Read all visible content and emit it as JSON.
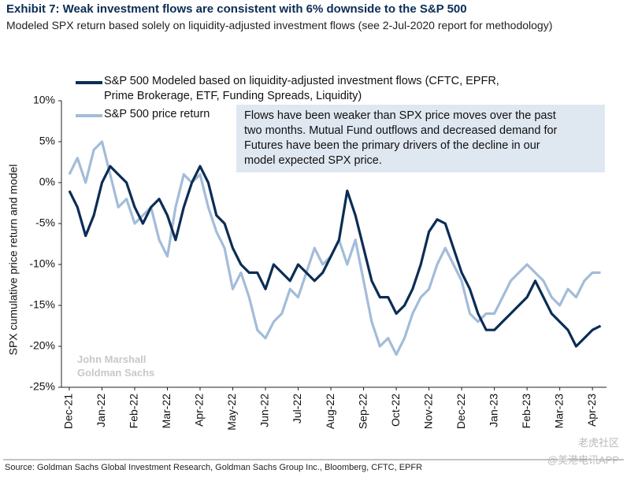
{
  "chart_data": {
    "type": "line",
    "title": "Exhibit 7: Weak investment flows are consistent with 6% downside to the S&P 500",
    "subtitle": "Modeled SPX return based solely on liquidity-adjusted investment flows (see 2-Jul-2020 report for methodology)",
    "y_label": "SPX cumulative price return and model",
    "annotation": [
      "Flows have been weaker than SPX price moves over the past",
      "two months. Mutual Fund outflows and decreased demand for",
      "Futures have been the primary drivers of the decline in our",
      "model expected SPX price."
    ],
    "watermark": [
      "John Marshall",
      "Goldman Sachs"
    ],
    "site_watermark": [
      "老虎社区",
      "@美港电讯APP"
    ],
    "source": "Source: Goldman Sachs Global Investment Research, Goldman Sachs Group Inc., Bloomberg, CFTC, EPFR",
    "x": [
      0,
      0.25,
      0.5,
      0.75,
      1,
      1.25,
      1.5,
      1.75,
      2,
      2.25,
      2.5,
      2.75,
      3,
      3.25,
      3.5,
      3.75,
      4,
      4.25,
      4.5,
      4.75,
      5,
      5.25,
      5.5,
      5.75,
      6,
      6.25,
      6.5,
      6.75,
      7,
      7.25,
      7.5,
      7.75,
      8,
      8.25,
      8.5,
      8.75,
      9,
      9.25,
      9.5,
      9.75,
      10,
      10.25,
      10.5,
      10.75,
      11,
      11.25,
      11.5,
      11.75,
      12,
      12.25,
      12.5,
      12.75,
      13,
      13.25,
      13.5,
      13.75,
      14,
      14.25,
      14.5,
      14.75,
      15,
      15.25,
      15.5,
      15.75,
      16,
      16.25
    ],
    "series": [
      {
        "name": "S&P 500 Modeled based on liquidity-adjusted investment flows (CFTC, EPFR, Prime Brokerage, ETF, Funding Spreads, Liquidity)",
        "color": "#0b2d55",
        "values": [
          -1,
          -3,
          -6.5,
          -4,
          0,
          2,
          1,
          0,
          -3,
          -5,
          -3,
          -2,
          -4,
          -7,
          -3,
          0,
          2,
          0,
          -4,
          -5,
          -8,
          -10,
          -11,
          -11,
          -13,
          -10,
          -11,
          -12,
          -10,
          -11,
          -12,
          -11,
          -9,
          -7,
          -1,
          -4,
          -8,
          -12,
          -14,
          -14,
          -16,
          -15,
          -13,
          -10,
          -6,
          -4.5,
          -5,
          -8,
          -11,
          -13,
          -16,
          -18,
          -18,
          -17,
          -16,
          -15,
          -14,
          -12,
          -14,
          -16,
          -17,
          -18,
          -20,
          -19,
          -18,
          -17.5
        ]
      },
      {
        "name": "S&P 500 price return",
        "color": "#a3bcd9",
        "values": [
          1,
          3,
          0,
          4,
          5,
          1,
          -3,
          -2,
          -5,
          -4,
          -3,
          -7,
          -9,
          -3,
          1,
          0,
          1,
          -3,
          -6,
          -8,
          -13,
          -11,
          -14,
          -18,
          -19,
          -17,
          -16,
          -13,
          -14,
          -11,
          -8,
          -10,
          -9,
          -7,
          -10,
          -7,
          -12,
          -17,
          -20,
          -19,
          -21,
          -19,
          -16,
          -14,
          -13,
          -10,
          -8,
          -10,
          -12,
          -16,
          -17,
          -16,
          -16,
          -14,
          -12,
          -11,
          -10,
          -11,
          -12,
          -14,
          -15,
          -13,
          -14,
          -12,
          -11,
          -11
        ]
      }
    ],
    "xlim": [
      -0.24,
      16.43
    ],
    "xticks": [
      {
        "value": 0,
        "label": "Dec-21"
      },
      {
        "value": 1,
        "label": "Jan-22"
      },
      {
        "value": 2,
        "label": "Feb-22"
      },
      {
        "value": 3,
        "label": "Mar-22"
      },
      {
        "value": 4,
        "label": "Apr-22"
      },
      {
        "value": 5,
        "label": "May-22"
      },
      {
        "value": 6,
        "label": "Jun-22"
      },
      {
        "value": 7,
        "label": "Jul-22"
      },
      {
        "value": 8,
        "label": "Aug-22"
      },
      {
        "value": 9,
        "label": "Sep-22"
      },
      {
        "value": 10,
        "label": "Oct-22"
      },
      {
        "value": 11,
        "label": "Nov-22"
      },
      {
        "value": 12,
        "label": "Dec-22"
      },
      {
        "value": 13,
        "label": "Jan-23"
      },
      {
        "value": 14,
        "label": "Feb-23"
      },
      {
        "value": 15,
        "label": "Mar-23"
      },
      {
        "value": 16,
        "label": "Apr-23"
      }
    ],
    "ylim": [
      -25,
      10
    ],
    "yticks": [
      {
        "value": 10,
        "label": "10%"
      },
      {
        "value": 5,
        "label": "5%"
      },
      {
        "value": 0,
        "label": "0%"
      },
      {
        "value": -5,
        "label": "-5%"
      },
      {
        "value": -10,
        "label": "-10%"
      },
      {
        "value": -15,
        "label": "-15%"
      },
      {
        "value": -20,
        "label": "-20%"
      },
      {
        "value": -25,
        "label": "-25%"
      }
    ]
  }
}
